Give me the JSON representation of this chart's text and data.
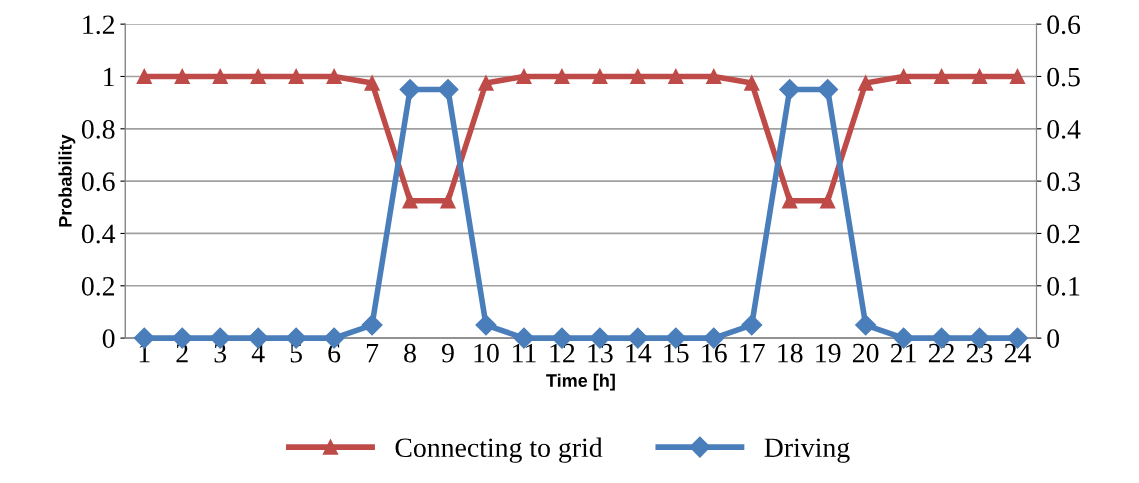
{
  "chart_data": {
    "type": "line",
    "xlabel": "Time [h]",
    "ylabel": "Probability",
    "categories": [
      "1",
      "2",
      "3",
      "4",
      "5",
      "6",
      "7",
      "8",
      "9",
      "10",
      "11",
      "12",
      "13",
      "14",
      "15",
      "16",
      "17",
      "18",
      "19",
      "20",
      "21",
      "22",
      "23",
      "24"
    ],
    "series": [
      {
        "name": "Connecting to grid",
        "color": "#be4b48",
        "marker": "triangle",
        "values": [
          1,
          1,
          1,
          1,
          1,
          1,
          0.975,
          0.525,
          0.525,
          0.975,
          1,
          1,
          1,
          1,
          1,
          1,
          0.975,
          0.525,
          0.525,
          0.975,
          1,
          1,
          1,
          1
        ]
      },
      {
        "name": "Driving",
        "color": "#4a7ebb",
        "marker": "diamond",
        "axis": "y2",
        "values": [
          0,
          0,
          0,
          0,
          0,
          0,
          0.025,
          0.475,
          0.475,
          0.025,
          0,
          0,
          0,
          0,
          0,
          0,
          0.025,
          0.475,
          0.475,
          0.025,
          0,
          0,
          0,
          0
        ]
      }
    ],
    "ylim": [
      0,
      1.2
    ],
    "yticks": [
      0,
      0.2,
      0.4,
      0.6,
      0.8,
      1,
      1.2
    ],
    "y2lim": [
      0,
      0.6
    ],
    "y2ticks": [
      0,
      0.1,
      0.2,
      0.3,
      0.4,
      0.5,
      0.6
    ],
    "grid": "y",
    "legend": "bottom"
  }
}
